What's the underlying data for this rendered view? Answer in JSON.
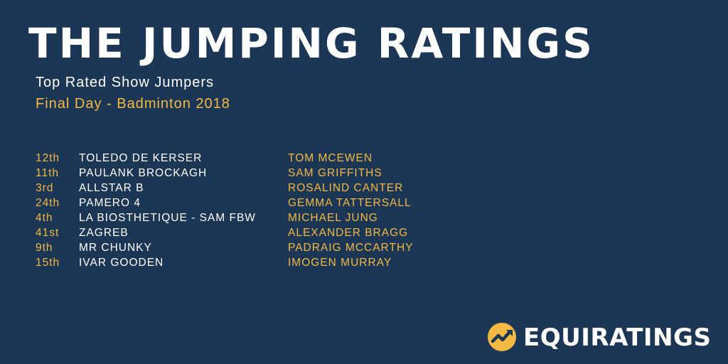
{
  "header": {
    "title": "THE JUMPING RATINGS",
    "subtitle": "Top Rated Show Jumpers",
    "event": "Final Day - Badminton 2018"
  },
  "ratings": [
    {
      "rank": "12th",
      "horse": "TOLEDO DE KERSER",
      "rider": "TOM MCEWEN"
    },
    {
      "rank": "11th",
      "horse": "PAULANK BROCKAGH",
      "rider": "SAM GRIFFITHS"
    },
    {
      "rank": "3rd",
      "horse": "ALLSTAR B",
      "rider": "ROSALIND CANTER"
    },
    {
      "rank": "24th",
      "horse": "PAMERO 4",
      "rider": "GEMMA TATTERSALL"
    },
    {
      "rank": "4th",
      "horse": "LA BIOSTHETIQUE - SAM FBW",
      "rider": "MICHAEL JUNG"
    },
    {
      "rank": "41st",
      "horse": "ZAGREB",
      "rider": "ALEXANDER BRAGG"
    },
    {
      "rank": "9th",
      "horse": "MR CHUNKY",
      "rider": "PADRAIG MCCARTHY"
    },
    {
      "rank": "15th",
      "horse": "IVAR GOODEN",
      "rider": "IMOGEN MURRAY"
    }
  ],
  "brand": {
    "name": "EQUIRATINGS",
    "icon": "trend-arrow-icon"
  },
  "colors": {
    "background": "#1c3655",
    "accent": "#f4b942",
    "text": "#ffffff"
  }
}
